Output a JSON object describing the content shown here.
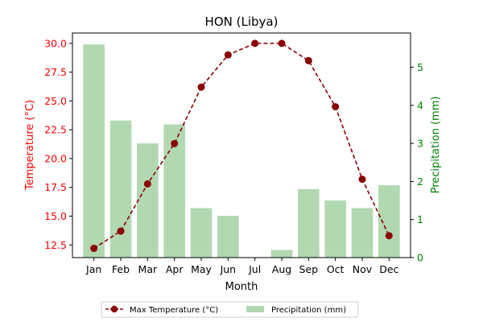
{
  "chart_data": {
    "type": "bar+line",
    "title": "HON (Libya)",
    "xlabel": "Month",
    "categories": [
      "Jan",
      "Feb",
      "Mar",
      "Apr",
      "May",
      "Jun",
      "Jul",
      "Aug",
      "Sep",
      "Oct",
      "Nov",
      "Dec"
    ],
    "left_axis": {
      "label": "Temperature (°C)",
      "color": "#ff0000",
      "ylim": [
        11.4,
        30.9
      ],
      "ticks": [
        12.5,
        15.0,
        17.5,
        20.0,
        22.5,
        25.0,
        27.5,
        30.0
      ],
      "tick_labels": [
        "12.5",
        "15.0",
        "17.5",
        "20.0",
        "22.5",
        "25.0",
        "27.5",
        "30.0"
      ]
    },
    "right_axis": {
      "label": "Precipitation (mm)",
      "color": "#008000",
      "ylim": [
        0,
        5.9
      ],
      "ticks": [
        0,
        1,
        2,
        3,
        4,
        5
      ],
      "tick_labels": [
        "0",
        "1",
        "2",
        "3",
        "4",
        "5"
      ]
    },
    "series": [
      {
        "name": "Max Temperature (°C)",
        "kind": "line",
        "axis": "left",
        "color": "#8b0000",
        "values": [
          12.2,
          13.7,
          17.8,
          21.3,
          26.2,
          29.0,
          30.0,
          30.0,
          28.5,
          24.5,
          18.2,
          13.3
        ]
      },
      {
        "name": "Precipitation (mm)",
        "kind": "bar",
        "axis": "right",
        "color": "#b2d8b2",
        "values": [
          5.6,
          3.6,
          3.0,
          3.5,
          1.3,
          1.1,
          0.0,
          0.2,
          1.8,
          1.5,
          1.3,
          1.9
        ]
      }
    ],
    "legend_position": "bottom-center",
    "grid": false
  }
}
